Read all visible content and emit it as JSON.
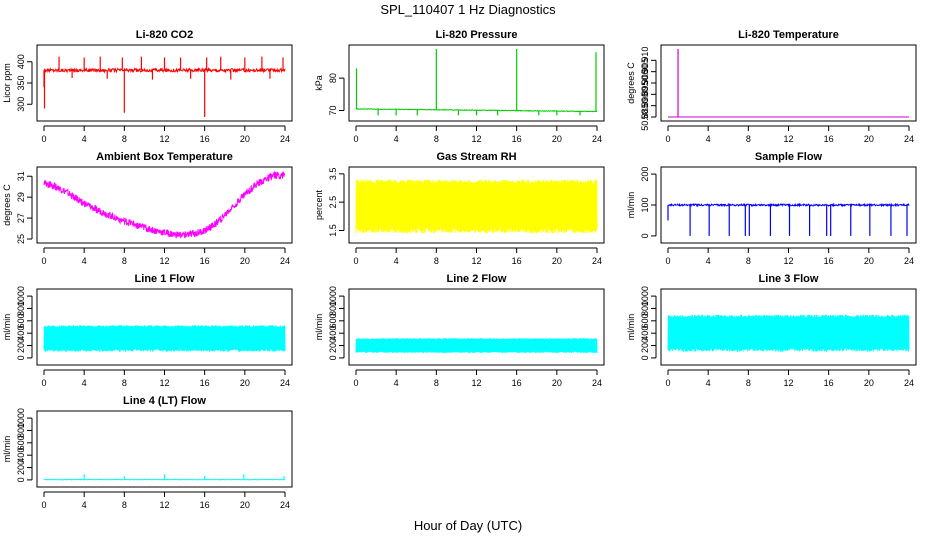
{
  "figure": {
    "title": "SPL_110407  1 Hz Diagnostics",
    "x_label": "Hour of Day (UTC)"
  },
  "chart_data": [
    {
      "type": "line",
      "title": "Li-820 CO2",
      "ylabel": "Licor ppm",
      "color": "#ff0000",
      "xlim": [
        0,
        24
      ],
      "ylim": [
        270,
        430
      ],
      "xticks": [
        0,
        4,
        8,
        12,
        16,
        20,
        24
      ],
      "yticks": [
        300,
        350,
        400
      ],
      "ytick_labels": [
        "300",
        "350",
        "400"
      ],
      "baseline": 380,
      "noise": 4,
      "spikes": [
        {
          "x": 0.0,
          "y": 340
        },
        {
          "x": 0.05,
          "y": 290
        },
        {
          "x": 1.5,
          "y": 412
        },
        {
          "x": 4.0,
          "y": 410
        },
        {
          "x": 5.6,
          "y": 412
        },
        {
          "x": 7.8,
          "y": 410
        },
        {
          "x": 8.0,
          "y": 280
        },
        {
          "x": 9.7,
          "y": 412
        },
        {
          "x": 12.0,
          "y": 410
        },
        {
          "x": 13.6,
          "y": 410
        },
        {
          "x": 16.0,
          "y": 270
        },
        {
          "x": 16.2,
          "y": 410
        },
        {
          "x": 17.6,
          "y": 412
        },
        {
          "x": 20.0,
          "y": 410
        },
        {
          "x": 21.7,
          "y": 412
        },
        {
          "x": 23.8,
          "y": 410
        },
        {
          "x": 2.8,
          "y": 362
        },
        {
          "x": 6.3,
          "y": 360
        },
        {
          "x": 10.8,
          "y": 358
        },
        {
          "x": 14.6,
          "y": 360
        },
        {
          "x": 18.6,
          "y": 358
        },
        {
          "x": 22.5,
          "y": 360
        }
      ]
    },
    {
      "type": "line",
      "title": "Li-820 Pressure",
      "ylabel": "kPa",
      "color": "#00cc00",
      "xlim": [
        0,
        24
      ],
      "ylim": [
        68,
        89
      ],
      "xticks": [
        0,
        4,
        8,
        12,
        16,
        20,
        24
      ],
      "yticks": [
        70,
        80
      ],
      "ytick_labels": [
        "70",
        "80"
      ],
      "baseline_start": 70.5,
      "baseline_end": 69.7,
      "noise": 0.1,
      "spikes": [
        {
          "x": 0.05,
          "y": 83
        },
        {
          "x": 8.0,
          "y": 89
        },
        {
          "x": 16.0,
          "y": 89
        },
        {
          "x": 23.9,
          "y": 88
        },
        {
          "x": 2.2,
          "y": 68.5
        },
        {
          "x": 4.0,
          "y": 68.5
        },
        {
          "x": 6.1,
          "y": 68.5
        },
        {
          "x": 10.2,
          "y": 68.5
        },
        {
          "x": 12.0,
          "y": 68.5
        },
        {
          "x": 14.1,
          "y": 68.5
        },
        {
          "x": 18.2,
          "y": 68.5
        },
        {
          "x": 20.0,
          "y": 68.5
        },
        {
          "x": 22.3,
          "y": 68.5
        }
      ]
    },
    {
      "type": "line",
      "title": "Li-820 Temperature",
      "ylabel": "degrees C",
      "color": "#cc00cc",
      "xlim": [
        0,
        24
      ],
      "ylim": [
        50.885,
        50.915
      ],
      "xticks": [
        0,
        4,
        8,
        12,
        16,
        20,
        24
      ],
      "yticks": [
        50.885,
        50.89,
        50.895,
        50.9,
        50.905,
        50.91
      ],
      "ytick_labels": [
        "50.885",
        "50.890",
        "50.895",
        "50.900",
        "50.905",
        "50.910"
      ],
      "baseline": 50.885,
      "noise": 0,
      "spikes": [
        {
          "x": 1.0,
          "y": 50.915
        }
      ]
    },
    {
      "type": "line",
      "title": "Ambient Box Temperature",
      "ylabel": "degrees C",
      "color": "#ff00ff",
      "xlim": [
        0,
        24
      ],
      "ylim": [
        25,
        31.5
      ],
      "xticks": [
        0,
        4,
        8,
        12,
        16,
        20,
        24
      ],
      "yticks": [
        25,
        27,
        29,
        31
      ],
      "ytick_labels": [
        "25",
        "27",
        "29",
        "31"
      ],
      "x": [
        0,
        1,
        2,
        3,
        4,
        5,
        6,
        7,
        8,
        9,
        10,
        11,
        12,
        13,
        14,
        15,
        16,
        17,
        18,
        19,
        20,
        21,
        22,
        23,
        24
      ],
      "y": [
        30.3,
        30.1,
        29.6,
        29.0,
        28.4,
        27.9,
        27.5,
        27.1,
        26.7,
        26.4,
        26.1,
        25.8,
        25.6,
        25.4,
        25.4,
        25.5,
        25.8,
        26.4,
        27.3,
        28.3,
        29.3,
        30.1,
        30.7,
        31.1,
        31.1
      ],
      "noise": 0.35
    },
    {
      "type": "line",
      "title": "Gas Stream RH",
      "ylabel": "percent",
      "color": "#ffff00",
      "xlim": [
        0,
        24
      ],
      "ylim": [
        1.2,
        3.6
      ],
      "xticks": [
        0,
        4,
        8,
        12,
        16,
        20,
        24
      ],
      "yticks": [
        1.5,
        2.5,
        3.5
      ],
      "ytick_labels": [
        "1.5",
        "2.5",
        "3.5"
      ],
      "band_low": 1.4,
      "band_high": 3.3
    },
    {
      "type": "line",
      "title": "Sample Flow",
      "ylabel": "ml/min",
      "color": "#0000ff",
      "xlim": [
        0,
        24
      ],
      "ylim": [
        -10,
        210
      ],
      "xticks": [
        0,
        4,
        8,
        12,
        16,
        20,
        24
      ],
      "yticks": [
        0,
        100,
        200
      ],
      "ytick_labels": [
        "0",
        "100",
        "200"
      ],
      "baseline": 100,
      "noise": 3,
      "spikes": [
        {
          "x": 0.0,
          "y": 50
        },
        {
          "x": 2.2,
          "y": 0
        },
        {
          "x": 4.1,
          "y": 0
        },
        {
          "x": 6.1,
          "y": 0
        },
        {
          "x": 7.7,
          "y": 0
        },
        {
          "x": 8.1,
          "y": 0
        },
        {
          "x": 10.2,
          "y": 0
        },
        {
          "x": 12.1,
          "y": 0
        },
        {
          "x": 14.1,
          "y": 0
        },
        {
          "x": 15.8,
          "y": 0
        },
        {
          "x": 16.2,
          "y": 0
        },
        {
          "x": 18.2,
          "y": 0
        },
        {
          "x": 20.1,
          "y": 0
        },
        {
          "x": 22.2,
          "y": 0
        },
        {
          "x": 23.8,
          "y": 0
        }
      ]
    },
    {
      "type": "line",
      "title": "Line 1 Flow",
      "ylabel": "ml/min",
      "color": "#00ffff",
      "xlim": [
        0,
        24
      ],
      "ylim": [
        -50,
        1050
      ],
      "xticks": [
        0,
        4,
        8,
        12,
        16,
        20,
        24
      ],
      "yticks": [
        0,
        200,
        400,
        600,
        800,
        1000
      ],
      "ytick_labels": [
        "0",
        "200",
        "400",
        "600",
        "800",
        "1000"
      ],
      "band_low": 100,
      "band_high": 530
    },
    {
      "type": "line",
      "title": "Line 2 Flow",
      "ylabel": "ml/min",
      "color": "#00ffff",
      "xlim": [
        0,
        24
      ],
      "ylim": [
        -50,
        1050
      ],
      "xticks": [
        0,
        4,
        8,
        12,
        16,
        20,
        24
      ],
      "yticks": [
        0,
        200,
        400,
        600,
        800,
        1000
      ],
      "ytick_labels": [
        "0",
        "200",
        "400",
        "600",
        "800",
        "1000"
      ],
      "band_low": 80,
      "band_high": 320
    },
    {
      "type": "line",
      "title": "Line 3 Flow",
      "ylabel": "ml/min",
      "color": "#00ffff",
      "xlim": [
        0,
        24
      ],
      "ylim": [
        -50,
        1050
      ],
      "xticks": [
        0,
        4,
        8,
        12,
        16,
        20,
        24
      ],
      "yticks": [
        0,
        200,
        400,
        600,
        800,
        1000
      ],
      "ytick_labels": [
        "0",
        "200",
        "400",
        "600",
        "800",
        "1000"
      ],
      "band_low": 100,
      "band_high": 700
    },
    {
      "type": "line",
      "title": "Line 4 (LT) Flow",
      "ylabel": "ml/min",
      "color": "#00ffff",
      "xlim": [
        0,
        24
      ],
      "ylim": [
        -50,
        1050
      ],
      "xticks": [
        0,
        4,
        8,
        12,
        16,
        20,
        24
      ],
      "yticks": [
        0,
        200,
        400,
        600,
        800,
        1000
      ],
      "ytick_labels": [
        "0",
        "200",
        "400",
        "600",
        "800",
        "1000"
      ],
      "baseline": 5,
      "noise": 3,
      "spikes": [
        {
          "x": 4.0,
          "y": 90
        },
        {
          "x": 8.0,
          "y": 60
        },
        {
          "x": 12.0,
          "y": 90
        },
        {
          "x": 16.0,
          "y": 60
        },
        {
          "x": 19.9,
          "y": 90
        },
        {
          "x": 23.9,
          "y": 60
        }
      ]
    }
  ]
}
